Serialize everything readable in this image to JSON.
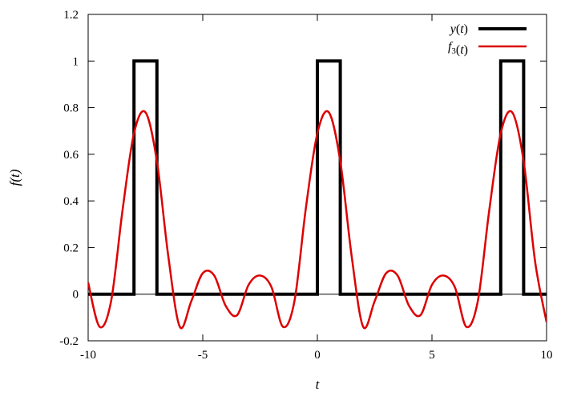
{
  "chart_data": {
    "type": "line",
    "xlabel": "t",
    "ylabel": "f(t)",
    "xlim": [
      -10,
      10
    ],
    "ylim": [
      -0.2,
      1.2
    ],
    "x_ticks": [
      -10,
      -5,
      0,
      5,
      10
    ],
    "y_ticks": [
      -0.2,
      0,
      0.2,
      0.4,
      0.6,
      0.8,
      1,
      1.2
    ],
    "x_tick_labels": [
      "-10",
      "-5",
      "0",
      "5",
      "10"
    ],
    "y_tick_labels": [
      "-0.2",
      "0",
      "0.2",
      "0.4",
      "0.6",
      "0.8",
      "1",
      "1.2"
    ],
    "grid": false,
    "legend_position": "top-right",
    "series": [
      {
        "name": "y(t)",
        "color": "#000000",
        "style": "step",
        "x": [
          -10,
          -8,
          -8,
          -7,
          -7,
          0,
          0,
          1,
          1,
          8,
          8,
          9,
          9,
          10
        ],
        "y": [
          0,
          0,
          1,
          1,
          0,
          0,
          1,
          1,
          0,
          0,
          1,
          1,
          0,
          0
        ]
      },
      {
        "name": "f3(t)",
        "color": "#dd0000",
        "style": "smooth",
        "x": [
          -10,
          -9.5,
          -9,
          -8.5,
          -8,
          -7.5,
          -7,
          -6.5,
          -6,
          -5.5,
          -5,
          -4.5,
          -4,
          -3.5,
          -3,
          -2.5,
          -2,
          -1.5,
          -1,
          -0.5,
          0,
          0.5,
          1,
          1.5,
          2,
          2.5,
          3,
          3.5,
          4,
          4.5,
          5,
          5.5,
          6,
          6.5,
          7,
          7.5,
          8,
          8.5,
          9,
          9.5,
          10
        ],
        "y": [
          0.05,
          -0.14,
          -0.03,
          0.36,
          0.69,
          0.78,
          0.57,
          0.16,
          -0.14,
          -0.03,
          0.09,
          0.08,
          -0.05,
          -0.09,
          0.04,
          0.08,
          0.03,
          -0.14,
          -0.03,
          0.37,
          0.69,
          0.78,
          0.57,
          0.16,
          -0.14,
          -0.03,
          0.09,
          0.08,
          -0.05,
          -0.09,
          0.04,
          0.08,
          0.03,
          -0.14,
          -0.03,
          0.36,
          0.69,
          0.78,
          0.57,
          0.14,
          -0.12
        ]
      }
    ]
  }
}
